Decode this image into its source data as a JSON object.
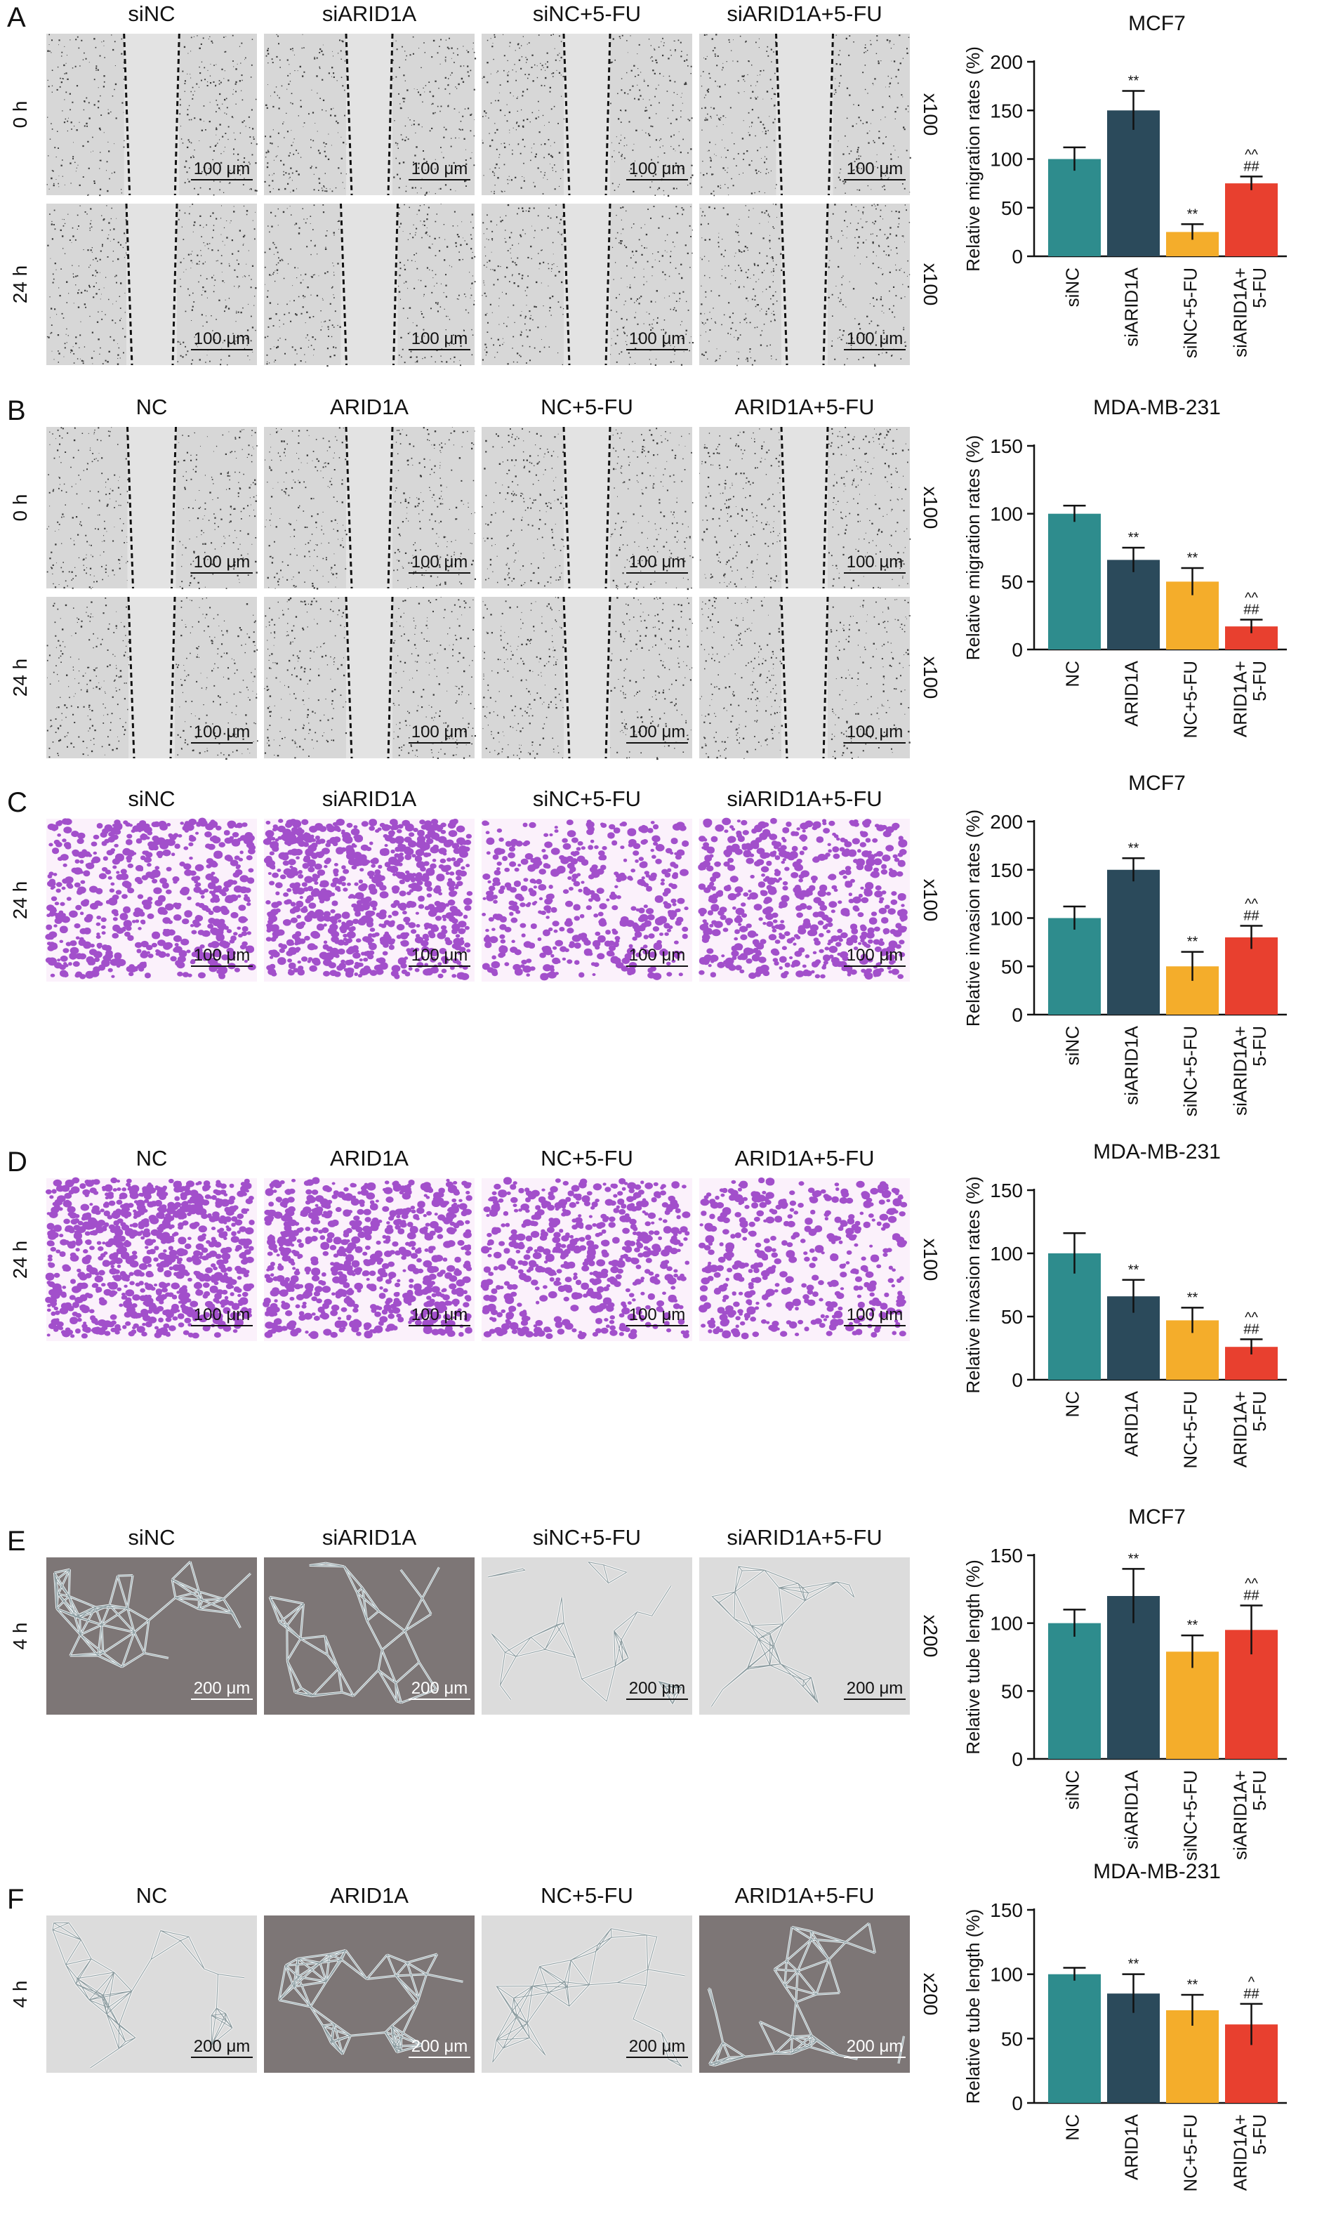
{
  "colors": {
    "teal": "#2e8c8d",
    "navy": "#2b4a5b",
    "orange": "#f4ad2b",
    "red": "#e8402f",
    "wound_bg": "#d7d7d7",
    "transwell_bg": "#fbf1fb",
    "transwell_cell": "#9232c2",
    "tube_bg_dark": "#7d7676",
    "tube_bg_light": "#dcdcdc"
  },
  "panels": [
    {
      "letter": "A",
      "kind": "wound",
      "conditions": [
        "siNC",
        "siARID1A",
        "siNC+5-FU",
        "siARID1A+5-FU"
      ],
      "rows": [
        {
          "time": "0 h",
          "mag": "x100",
          "gaps": [
            0.42,
            0.0,
            0.0,
            0.5
          ]
        },
        {
          "time": "24 h",
          "mag": "x100",
          "gaps": [
            0.2,
            0.5,
            0.0,
            0.0
          ]
        }
      ],
      "scale": "100 μm",
      "chart_data": {
        "type": "bar",
        "title": "MCF7",
        "ylabel": "Relative migration rates (%)",
        "ylim": [
          0,
          200
        ],
        "ticks": [
          0,
          50,
          100,
          150,
          200
        ],
        "categories": [
          "siNC",
          "siARID1A",
          "siNC+5-FU",
          "siARID1A+\n5-FU"
        ],
        "values": [
          100,
          150,
          25,
          75
        ],
        "errors": [
          12,
          20,
          8,
          7
        ],
        "annotations": [
          "",
          "**",
          "**",
          "^^\n##"
        ]
      }
    },
    {
      "letter": "B",
      "kind": "wound",
      "conditions": [
        "NC",
        "ARID1A",
        "NC+5-FU",
        "ARID1A+5-FU"
      ],
      "rows": [
        {
          "time": "0 h",
          "mag": "x100",
          "gaps": [
            0.1,
            0.0,
            0.0,
            0.0
          ]
        },
        {
          "time": "24 h",
          "mag": "x100",
          "gaps": [
            0.0,
            0.0,
            0.0,
            0.0
          ]
        }
      ],
      "scale": "100 μm",
      "chart_data": {
        "type": "bar",
        "title": "MDA-MB-231",
        "ylabel": "Relative migration rates (%)",
        "ylim": [
          0,
          150
        ],
        "ticks": [
          0,
          50,
          100,
          150
        ],
        "categories": [
          "NC",
          "ARID1A",
          "NC+5-FU",
          "ARID1A+\n5-FU"
        ],
        "values": [
          100,
          66,
          50,
          17
        ],
        "errors": [
          6,
          9,
          10,
          5
        ],
        "annotations": [
          "",
          "**",
          "**",
          "^^\n##"
        ]
      }
    },
    {
      "letter": "C",
      "kind": "transwell",
      "conditions": [
        "siNC",
        "siARID1A",
        "siNC+5-FU",
        "siARID1A+5-FU"
      ],
      "rows": [
        {
          "time": "24 h",
          "mag": "x100",
          "density": [
            0.55,
            0.85,
            0.3,
            0.5
          ]
        }
      ],
      "scale": "100 μm",
      "chart_data": {
        "type": "bar",
        "title": "MCF7",
        "ylabel": "Relative invasion rates (%)",
        "ylim": [
          0,
          200
        ],
        "ticks": [
          0,
          50,
          100,
          150,
          200
        ],
        "categories": [
          "siNC",
          "siARID1A",
          "siNC+5-FU",
          "siARID1A+\n5-FU"
        ],
        "values": [
          100,
          150,
          50,
          80
        ],
        "errors": [
          12,
          12,
          15,
          12
        ],
        "annotations": [
          "",
          "**",
          "**",
          "^^\n##"
        ]
      }
    },
    {
      "letter": "D",
      "kind": "transwell",
      "conditions": [
        "NC",
        "ARID1A",
        "NC+5-FU",
        "ARID1A+5-FU"
      ],
      "rows": [
        {
          "time": "24 h",
          "mag": "x100",
          "density": [
            0.95,
            0.7,
            0.45,
            0.3
          ]
        }
      ],
      "scale": "100 μm",
      "chart_data": {
        "type": "bar",
        "title": "MDA-MB-231",
        "ylabel": "Relative invasion rates (%)",
        "ylim": [
          0,
          150
        ],
        "ticks": [
          0,
          50,
          100,
          150
        ],
        "categories": [
          "NC",
          "ARID1A",
          "NC+5-FU",
          "ARID1A+\n5-FU"
        ],
        "values": [
          100,
          66,
          47,
          26
        ],
        "errors": [
          16,
          13,
          10,
          6
        ],
        "annotations": [
          "",
          "**",
          "**",
          "^^\n##"
        ]
      }
    },
    {
      "letter": "E",
      "kind": "tube",
      "conditions": [
        "siNC",
        "siARID1A",
        "siNC+5-FU",
        "siARID1A+5-FU"
      ],
      "rows": [
        {
          "time": "4 h",
          "mag": "x200",
          "dark": [
            1,
            1,
            0,
            0
          ]
        }
      ],
      "scale": "200 μm",
      "chart_data": {
        "type": "bar",
        "title": "MCF7",
        "ylabel": "Relative tube length (%)",
        "ylim": [
          0,
          150
        ],
        "ticks": [
          0,
          50,
          100,
          150
        ],
        "categories": [
          "siNC",
          "siARID1A",
          "siNC+5-FU",
          "siARID1A+\n5-FU"
        ],
        "values": [
          100,
          120,
          79,
          95
        ],
        "errors": [
          10,
          20,
          12,
          18
        ],
        "annotations": [
          "",
          "**",
          "**",
          "^^\n##"
        ]
      }
    },
    {
      "letter": "F",
      "kind": "tube",
      "conditions": [
        "NC",
        "ARID1A",
        "NC+5-FU",
        "ARID1A+5-FU"
      ],
      "rows": [
        {
          "time": "4 h",
          "mag": "x200",
          "dark": [
            0,
            1,
            0,
            1
          ]
        }
      ],
      "scale": "200 μm",
      "chart_data": {
        "type": "bar",
        "title": "MDA-MB-231",
        "ylabel": "Relative tube length (%)",
        "ylim": [
          0,
          150
        ],
        "ticks": [
          0,
          50,
          100,
          150
        ],
        "categories": [
          "NC",
          "ARID1A",
          "NC+5-FU",
          "ARID1A+\n5-FU"
        ],
        "values": [
          100,
          85,
          72,
          61
        ],
        "errors": [
          5,
          15,
          12,
          16
        ],
        "annotations": [
          "",
          "**",
          "**",
          "^\n##"
        ]
      }
    }
  ]
}
